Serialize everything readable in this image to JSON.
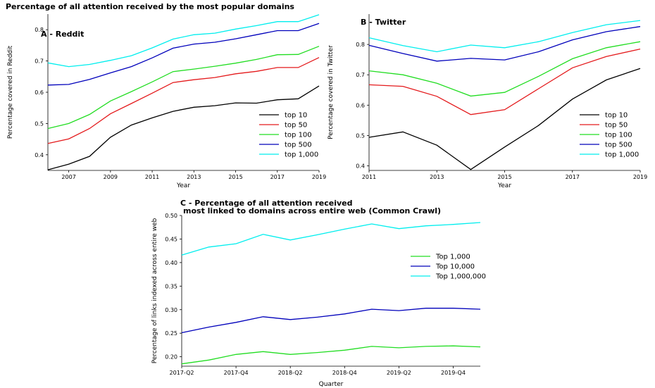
{
  "figure_title": "Percentage of all attention received by the most popular domains",
  "chart_data": [
    {
      "type": "line",
      "panel_title": "A - Reddit",
      "xlabel": "Year",
      "ylabel": "Percentage covered in Reddit",
      "x": [
        2006,
        2007,
        2008,
        2009,
        2010,
        2011,
        2012,
        2013,
        2014,
        2015,
        2016,
        2017,
        2018,
        2019
      ],
      "xticks": [
        2007,
        2009,
        2011,
        2013,
        2015,
        2017,
        2019
      ],
      "xtick_labels": [
        "2007",
        "2009",
        "2011",
        "2013",
        "2015",
        "2017",
        "2019"
      ],
      "xlim": [
        2006,
        2019
      ],
      "yticks": [
        0.4,
        0.5,
        0.6,
        0.7,
        0.8
      ],
      "ytick_labels": [
        "0.4",
        "0.5",
        "0.6",
        "0.7",
        "0.8"
      ],
      "ylim": [
        0.35,
        0.85
      ],
      "grid": false,
      "legend_position": "bottom-right",
      "series": [
        {
          "name": "top 10",
          "color": "#000000",
          "values": [
            0.352,
            0.37,
            0.395,
            0.456,
            0.495,
            0.518,
            0.539,
            0.552,
            0.557,
            0.566,
            0.565,
            0.576,
            0.579,
            0.62
          ]
        },
        {
          "name": "top 50",
          "color": "#e41a1c",
          "values": [
            0.436,
            0.451,
            0.484,
            0.531,
            0.564,
            0.597,
            0.631,
            0.64,
            0.647,
            0.659,
            0.667,
            0.679,
            0.679,
            0.711
          ]
        },
        {
          "name": "top 100",
          "color": "#22dd22",
          "values": [
            0.484,
            0.5,
            0.529,
            0.572,
            0.602,
            0.633,
            0.666,
            0.674,
            0.683,
            0.693,
            0.705,
            0.72,
            0.721,
            0.747
          ]
        },
        {
          "name": "top 500",
          "color": "#0000bb",
          "values": [
            0.623,
            0.625,
            0.641,
            0.662,
            0.682,
            0.71,
            0.741,
            0.754,
            0.76,
            0.771,
            0.784,
            0.797,
            0.797,
            0.82
          ]
        },
        {
          "name": "top 1,000",
          "color": "#00eeee",
          "values": [
            0.694,
            0.682,
            0.689,
            0.702,
            0.717,
            0.742,
            0.77,
            0.784,
            0.789,
            0.802,
            0.813,
            0.826,
            0.826,
            0.848
          ]
        }
      ]
    },
    {
      "type": "line",
      "panel_title": "B - Twitter",
      "xlabel": "Year",
      "ylabel": "Percentage covered in Twitter",
      "x": [
        2011,
        2012,
        2013,
        2014,
        2015,
        2016,
        2017,
        2018,
        2019
      ],
      "xticks": [
        2011,
        2013,
        2015,
        2017,
        2019
      ],
      "xtick_labels": [
        "2011",
        "2013",
        "2015",
        "2017",
        "2019"
      ],
      "xlim": [
        2011,
        2019
      ],
      "yticks": [
        0.4,
        0.5,
        0.6,
        0.7,
        0.8
      ],
      "ytick_labels": [
        "0.4",
        "0.5",
        "0.6",
        "0.7",
        "0.8"
      ],
      "ylim": [
        0.385,
        0.9
      ],
      "grid": false,
      "legend_position": "bottom-right",
      "series": [
        {
          "name": "top 10",
          "color": "#000000",
          "values": [
            0.494,
            0.512,
            0.468,
            0.388,
            0.462,
            0.533,
            0.62,
            0.683,
            0.721
          ]
        },
        {
          "name": "top 50",
          "color": "#e41a1c",
          "values": [
            0.667,
            0.662,
            0.629,
            0.569,
            0.585,
            0.654,
            0.723,
            0.76,
            0.785
          ]
        },
        {
          "name": "top 100",
          "color": "#22dd22",
          "values": [
            0.713,
            0.7,
            0.672,
            0.63,
            0.642,
            0.695,
            0.753,
            0.789,
            0.809
          ]
        },
        {
          "name": "top 500",
          "color": "#0000bb",
          "values": [
            0.797,
            0.77,
            0.745,
            0.754,
            0.749,
            0.776,
            0.815,
            0.842,
            0.859
          ]
        },
        {
          "name": "top 1,000",
          "color": "#00eeee",
          "values": [
            0.822,
            0.796,
            0.776,
            0.798,
            0.789,
            0.809,
            0.839,
            0.865,
            0.879
          ]
        }
      ]
    },
    {
      "type": "line",
      "panel_title": "C - Percentage of all attention received",
      "panel_subtitle": "most linked to domains across entire web (Common Crawl)",
      "xlabel": "Quarter",
      "ylabel": "Percentage of links indexed across entire web",
      "x": [
        "2017-Q2",
        "2017-Q3",
        "2017-Q4",
        "2018-Q1",
        "2018-Q2",
        "2018-Q3",
        "2018-Q4",
        "2019-Q1",
        "2019-Q2",
        "2019-Q3",
        "2019-Q4",
        "2020-Q1"
      ],
      "xtick_labels": [
        "2017-Q2",
        "2017-Q4",
        "2018-Q2",
        "2018-Q4",
        "2019-Q2",
        "2019-Q4"
      ],
      "yticks": [
        0.2,
        0.25,
        0.3,
        0.35,
        0.4,
        0.45,
        0.5
      ],
      "ytick_labels": [
        "0.20",
        "0.25",
        "0.30",
        "0.35",
        "0.40",
        "0.45",
        "0.50"
      ],
      "ylim": [
        0.18,
        0.5
      ],
      "grid": false,
      "legend_position": "right",
      "series": [
        {
          "name": "Top 1,000",
          "color": "#22dd22",
          "values": [
            0.185,
            0.193,
            0.205,
            0.211,
            0.205,
            0.209,
            0.214,
            0.222,
            0.219,
            0.222,
            0.223,
            0.221
          ]
        },
        {
          "name": "Top 10,000",
          "color": "#0000bb",
          "values": [
            0.251,
            0.263,
            0.273,
            0.285,
            0.279,
            0.284,
            0.291,
            0.301,
            0.298,
            0.303,
            0.303,
            0.301
          ]
        },
        {
          "name": "Top 1,000,000",
          "color": "#00eeee",
          "values": [
            0.416,
            0.433,
            0.44,
            0.46,
            0.448,
            0.459,
            0.471,
            0.482,
            0.472,
            0.478,
            0.481,
            0.485
          ]
        }
      ]
    }
  ]
}
